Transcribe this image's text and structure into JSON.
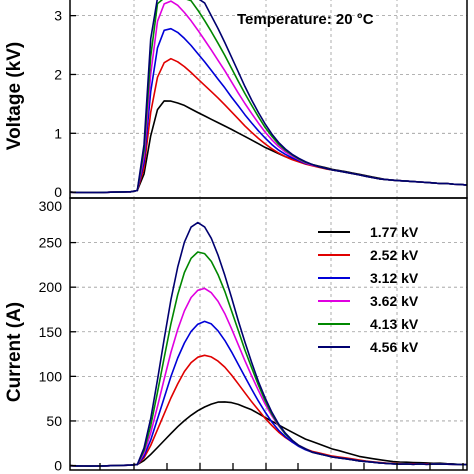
{
  "chart_data": [
    {
      "type": "line",
      "ylabel": "Voltage (kV)",
      "annotation": "Temperature: 20 °C",
      "ylim": [
        -0.1,
        3.3
      ],
      "yticks": [
        0,
        1,
        2,
        3
      ],
      "grid": true,
      "x_step": 1,
      "series": [
        {
          "label": "1.77 kV",
          "color": "#000000",
          "values": [
            0,
            0,
            0,
            0,
            0,
            0,
            0,
            0,
            0,
            0,
            0.02,
            0.3,
            0.95,
            1.4,
            1.55,
            1.55,
            1.52,
            1.48,
            1.42,
            1.36,
            1.3,
            1.24,
            1.18,
            1.12,
            1.06,
            1.0,
            0.94,
            0.88,
            0.82,
            0.76,
            0.71,
            0.66,
            0.61,
            0.57,
            0.53,
            0.5,
            0.47,
            0.44,
            0.41,
            0.38,
            0.36,
            0.34,
            0.32,
            0.3,
            0.28,
            0.26,
            0.24,
            0.22,
            0.21,
            0.2,
            0.19,
            0.18,
            0.17,
            0.16,
            0.15,
            0.14,
            0.14,
            0.13,
            0.13,
            0.12
          ]
        },
        {
          "label": "2.52 kV",
          "color": "#e00000",
          "values": [
            0,
            0,
            0,
            0,
            0,
            0,
            0,
            0,
            0,
            0,
            0.02,
            0.4,
            1.35,
            1.95,
            2.2,
            2.27,
            2.22,
            2.14,
            2.04,
            1.93,
            1.82,
            1.71,
            1.6,
            1.48,
            1.36,
            1.24,
            1.12,
            1.01,
            0.91,
            0.82,
            0.74,
            0.67,
            0.61,
            0.56,
            0.52,
            0.48,
            0.45,
            0.42,
            0.39,
            0.37,
            0.35,
            0.33,
            0.31,
            0.29,
            0.27,
            0.25,
            0.23,
            0.22,
            0.21,
            0.2,
            0.19,
            0.18,
            0.17,
            0.16,
            0.15,
            0.14,
            0.14,
            0.13,
            0.13,
            0.12
          ]
        },
        {
          "label": "3.12 kV",
          "color": "#0000d8",
          "values": [
            0,
            0,
            0,
            0,
            0,
            0,
            0,
            0,
            0,
            0,
            0.02,
            0.5,
            1.7,
            2.45,
            2.75,
            2.78,
            2.72,
            2.62,
            2.5,
            2.36,
            2.22,
            2.07,
            1.92,
            1.77,
            1.61,
            1.46,
            1.31,
            1.17,
            1.04,
            0.92,
            0.81,
            0.72,
            0.65,
            0.59,
            0.54,
            0.49,
            0.46,
            0.43,
            0.4,
            0.37,
            0.35,
            0.33,
            0.31,
            0.29,
            0.27,
            0.25,
            0.23,
            0.22,
            0.21,
            0.2,
            0.19,
            0.18,
            0.17,
            0.16,
            0.15,
            0.14,
            0.14,
            0.13,
            0.13,
            0.12
          ]
        },
        {
          "label": "3.62 kV",
          "color": "#e000e0",
          "values": [
            0,
            0,
            0,
            0,
            0,
            0,
            0,
            0,
            0,
            0,
            0.02,
            0.6,
            2.0,
            2.9,
            3.2,
            3.25,
            3.18,
            3.06,
            2.92,
            2.76,
            2.59,
            2.42,
            2.24,
            2.06,
            1.87,
            1.68,
            1.5,
            1.33,
            1.17,
            1.02,
            0.89,
            0.78,
            0.69,
            0.62,
            0.56,
            0.5,
            0.46,
            0.43,
            0.4,
            0.37,
            0.35,
            0.33,
            0.31,
            0.29,
            0.27,
            0.25,
            0.23,
            0.22,
            0.21,
            0.2,
            0.19,
            0.18,
            0.17,
            0.16,
            0.15,
            0.14,
            0.14,
            0.13,
            0.13,
            0.12
          ]
        },
        {
          "label": "4.13 kV",
          "color": "#008800",
          "values": [
            0,
            0,
            0,
            0,
            0,
            0,
            0,
            0,
            0,
            0,
            0.02,
            0.7,
            2.3,
            3.2,
            3.3,
            3.3,
            3.3,
            3.3,
            3.26,
            3.1,
            2.92,
            2.73,
            2.53,
            2.32,
            2.1,
            1.88,
            1.67,
            1.47,
            1.28,
            1.1,
            0.95,
            0.82,
            0.72,
            0.64,
            0.57,
            0.51,
            0.47,
            0.43,
            0.4,
            0.37,
            0.35,
            0.33,
            0.31,
            0.29,
            0.27,
            0.25,
            0.23,
            0.22,
            0.21,
            0.2,
            0.19,
            0.18,
            0.17,
            0.16,
            0.15,
            0.14,
            0.14,
            0.13,
            0.13,
            0.12
          ]
        },
        {
          "label": "4.56 kV",
          "color": "#000070",
          "values": [
            0,
            0,
            0,
            0,
            0,
            0,
            0,
            0,
            0,
            0,
            0.02,
            0.8,
            2.6,
            3.3,
            3.3,
            3.3,
            3.3,
            3.3,
            3.3,
            3.3,
            3.22,
            3.0,
            2.78,
            2.54,
            2.29,
            2.04,
            1.79,
            1.56,
            1.35,
            1.16,
            0.99,
            0.85,
            0.74,
            0.65,
            0.58,
            0.52,
            0.47,
            0.43,
            0.4,
            0.37,
            0.35,
            0.33,
            0.31,
            0.29,
            0.27,
            0.25,
            0.23,
            0.22,
            0.21,
            0.2,
            0.19,
            0.18,
            0.17,
            0.16,
            0.15,
            0.14,
            0.14,
            0.13,
            0.13,
            0.12
          ]
        }
      ]
    },
    {
      "type": "line",
      "ylabel": "Current (A)",
      "ylim": [
        -5,
        300
      ],
      "yticks": [
        0,
        50,
        100,
        150,
        200,
        250
      ],
      "ytick_top_label": "300",
      "grid": true,
      "legend": "right",
      "x_step": 1,
      "series": [
        {
          "label": "1.77 kV",
          "color": "#000000",
          "values": [
            0,
            0,
            0,
            0,
            0,
            0,
            0,
            0,
            0,
            0,
            0.5,
            5,
            12,
            20,
            28,
            36,
            44,
            51,
            57,
            62,
            66,
            69,
            71,
            71,
            70,
            68,
            65,
            62,
            58,
            54,
            50,
            46,
            42,
            38,
            34,
            30,
            27,
            24,
            21,
            18,
            16,
            14,
            12,
            10,
            9,
            8,
            7,
            6,
            5,
            4.5,
            4,
            3.5,
            3,
            2.5,
            2,
            2,
            1.5,
            1.5,
            1,
            1
          ]
        },
        {
          "label": "2.52 kV",
          "color": "#e00000",
          "values": [
            0,
            0,
            0,
            0,
            0,
            0,
            0,
            0,
            0,
            0,
            0.5,
            8,
            22,
            40,
            58,
            76,
            92,
            106,
            116,
            122,
            124,
            122,
            117,
            110,
            101,
            91,
            81,
            71,
            62,
            53,
            45,
            38,
            32,
            27,
            23,
            19,
            16,
            14,
            12,
            10,
            9,
            8,
            7,
            6,
            5,
            4.5,
            4,
            3.5,
            3,
            2.5,
            2,
            2,
            1.5,
            1.5,
            1,
            1,
            1,
            1,
            1,
            1
          ]
        },
        {
          "label": "3.12 kV",
          "color": "#0000d8",
          "values": [
            0,
            0,
            0,
            0,
            0,
            0,
            0,
            0,
            0,
            0,
            0.5,
            10,
            28,
            52,
            76,
            100,
            121,
            138,
            151,
            159,
            162,
            159,
            151,
            140,
            127,
            113,
            99,
            85,
            72,
            60,
            49,
            40,
            33,
            27,
            22,
            18,
            15,
            13,
            11,
            9,
            8,
            7,
            6,
            5,
            4.5,
            4,
            3.5,
            3,
            2.5,
            2,
            2,
            1.5,
            1.5,
            1,
            1,
            1,
            1,
            1,
            1,
            1
          ]
        },
        {
          "label": "3.62 kV",
          "color": "#e000e0",
          "values": [
            0,
            0,
            0,
            0,
            0,
            0,
            0,
            0,
            0,
            0,
            0.5,
            13,
            36,
            66,
            97,
            127,
            153,
            174,
            189,
            197,
            199,
            194,
            184,
            170,
            153,
            135,
            117,
            100,
            84,
            69,
            56,
            45,
            36,
            29,
            23,
            19,
            15,
            13,
            11,
            9,
            8,
            7,
            6,
            5,
            4.5,
            4,
            3.5,
            3,
            2.5,
            2,
            2,
            1.5,
            1.5,
            1,
            1,
            1,
            1,
            1,
            1,
            1
          ]
        },
        {
          "label": "4.13 kV",
          "color": "#008800",
          "values": [
            0,
            0,
            0,
            0,
            0,
            0,
            0,
            0,
            0,
            0,
            0.5,
            16,
            44,
            82,
            121,
            159,
            192,
            217,
            233,
            240,
            238,
            229,
            214,
            195,
            173,
            151,
            129,
            109,
            90,
            73,
            58,
            46,
            36,
            29,
            23,
            19,
            15,
            13,
            11,
            9,
            8,
            7,
            6,
            5,
            4.5,
            4,
            3.5,
            3,
            2.5,
            2,
            2,
            1.5,
            1.5,
            1,
            1,
            1,
            1,
            1,
            1,
            1
          ]
        },
        {
          "label": "4.56 kV",
          "color": "#000070",
          "values": [
            0,
            0,
            0,
            0,
            0,
            0,
            0,
            0,
            0,
            0,
            0.5,
            19,
            52,
            96,
            142,
            186,
            223,
            251,
            268,
            273,
            268,
            255,
            236,
            213,
            188,
            162,
            138,
            115,
            94,
            76,
            60,
            47,
            37,
            29,
            23,
            19,
            15,
            13,
            11,
            9,
            8,
            7,
            6,
            5,
            4.5,
            4,
            3.5,
            3,
            2.5,
            2,
            2,
            1.5,
            1.5,
            1,
            1,
            1,
            1,
            1,
            1,
            1
          ]
        }
      ]
    }
  ]
}
